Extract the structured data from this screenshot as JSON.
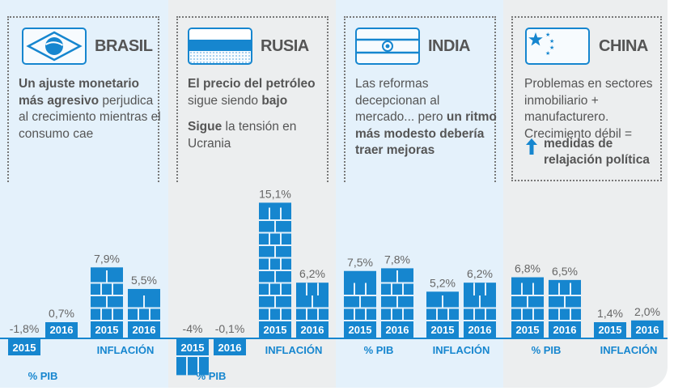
{
  "colors": {
    "accent": "#1686cf",
    "panel_blue": "#e4f1fb",
    "panel_gray": "#eceeef",
    "text": "#555555"
  },
  "countries": [
    {
      "name": "BRASIL",
      "flag_icon": "brazil-flag-icon",
      "description": [
        [
          {
            "t": "Un ajuste monetario más agresivo",
            "b": true
          },
          {
            "t": " perjudica al crecimiento mientras el consumo cae",
            "b": false
          }
        ]
      ]
    },
    {
      "name": "RUSIA",
      "flag_icon": "russia-flag-icon",
      "description": [
        [
          {
            "t": "El precio del petróleo",
            "b": true
          },
          {
            "t": " sigue siendo ",
            "b": false
          },
          {
            "t": "bajo",
            "b": true
          }
        ],
        [
          {
            "t": "Sigue",
            "b": true
          },
          {
            "t": " la tensión en Ucrania",
            "b": false
          }
        ]
      ]
    },
    {
      "name": "INDIA",
      "flag_icon": "india-flag-icon",
      "description": [
        [
          {
            "t": "Las reformas decepcionan al mercado... pero ",
            "b": false
          },
          {
            "t": "un ritmo más modesto debería traer mejoras",
            "b": true
          }
        ]
      ]
    },
    {
      "name": "CHINA",
      "flag_icon": "china-flag-icon",
      "description": [
        [
          {
            "t": "Problemas en sectores inmobiliario + manufacturero. Crecimiento débil =",
            "b": false
          }
        ]
      ],
      "extra": {
        "icon": "up-arrow-icon",
        "text": "medidas de relajación política"
      }
    }
  ],
  "chart_data": {
    "type": "bar",
    "title": "",
    "categories": [
      "% PIB",
      "INFLACIÓN"
    ],
    "years": [
      "2015",
      "2016"
    ],
    "series": [
      {
        "name": "BRASIL",
        "pib": [
          -1.8,
          0.7
        ],
        "inflacion": [
          7.9,
          5.5
        ],
        "labels": {
          "pib": [
            "-1,8%",
            "0,7%"
          ],
          "inflacion": [
            "7,9%",
            "5,5%"
          ]
        }
      },
      {
        "name": "RUSIA",
        "pib": [
          -4,
          -0.1
        ],
        "inflacion": [
          15.1,
          6.2
        ],
        "labels": {
          "pib": [
            "-4%",
            "-0,1%"
          ],
          "inflacion": [
            "15,1%",
            "6,2%"
          ]
        }
      },
      {
        "name": "INDIA",
        "pib": [
          7.5,
          7.8
        ],
        "inflacion": [
          5.2,
          6.2
        ],
        "labels": {
          "pib": [
            "7,5%",
            "7,8%"
          ],
          "inflacion": [
            "5,2%",
            "6,2%"
          ]
        }
      },
      {
        "name": "CHINA",
        "pib": [
          6.8,
          6.5
        ],
        "inflacion": [
          1.4,
          2.0
        ],
        "labels": {
          "pib": [
            "6,8%",
            "6,5%"
          ],
          "inflacion": [
            "1,4%",
            "2,0%"
          ]
        }
      }
    ],
    "xlabel": "",
    "ylabel": "",
    "grid": false,
    "legend": "none"
  }
}
